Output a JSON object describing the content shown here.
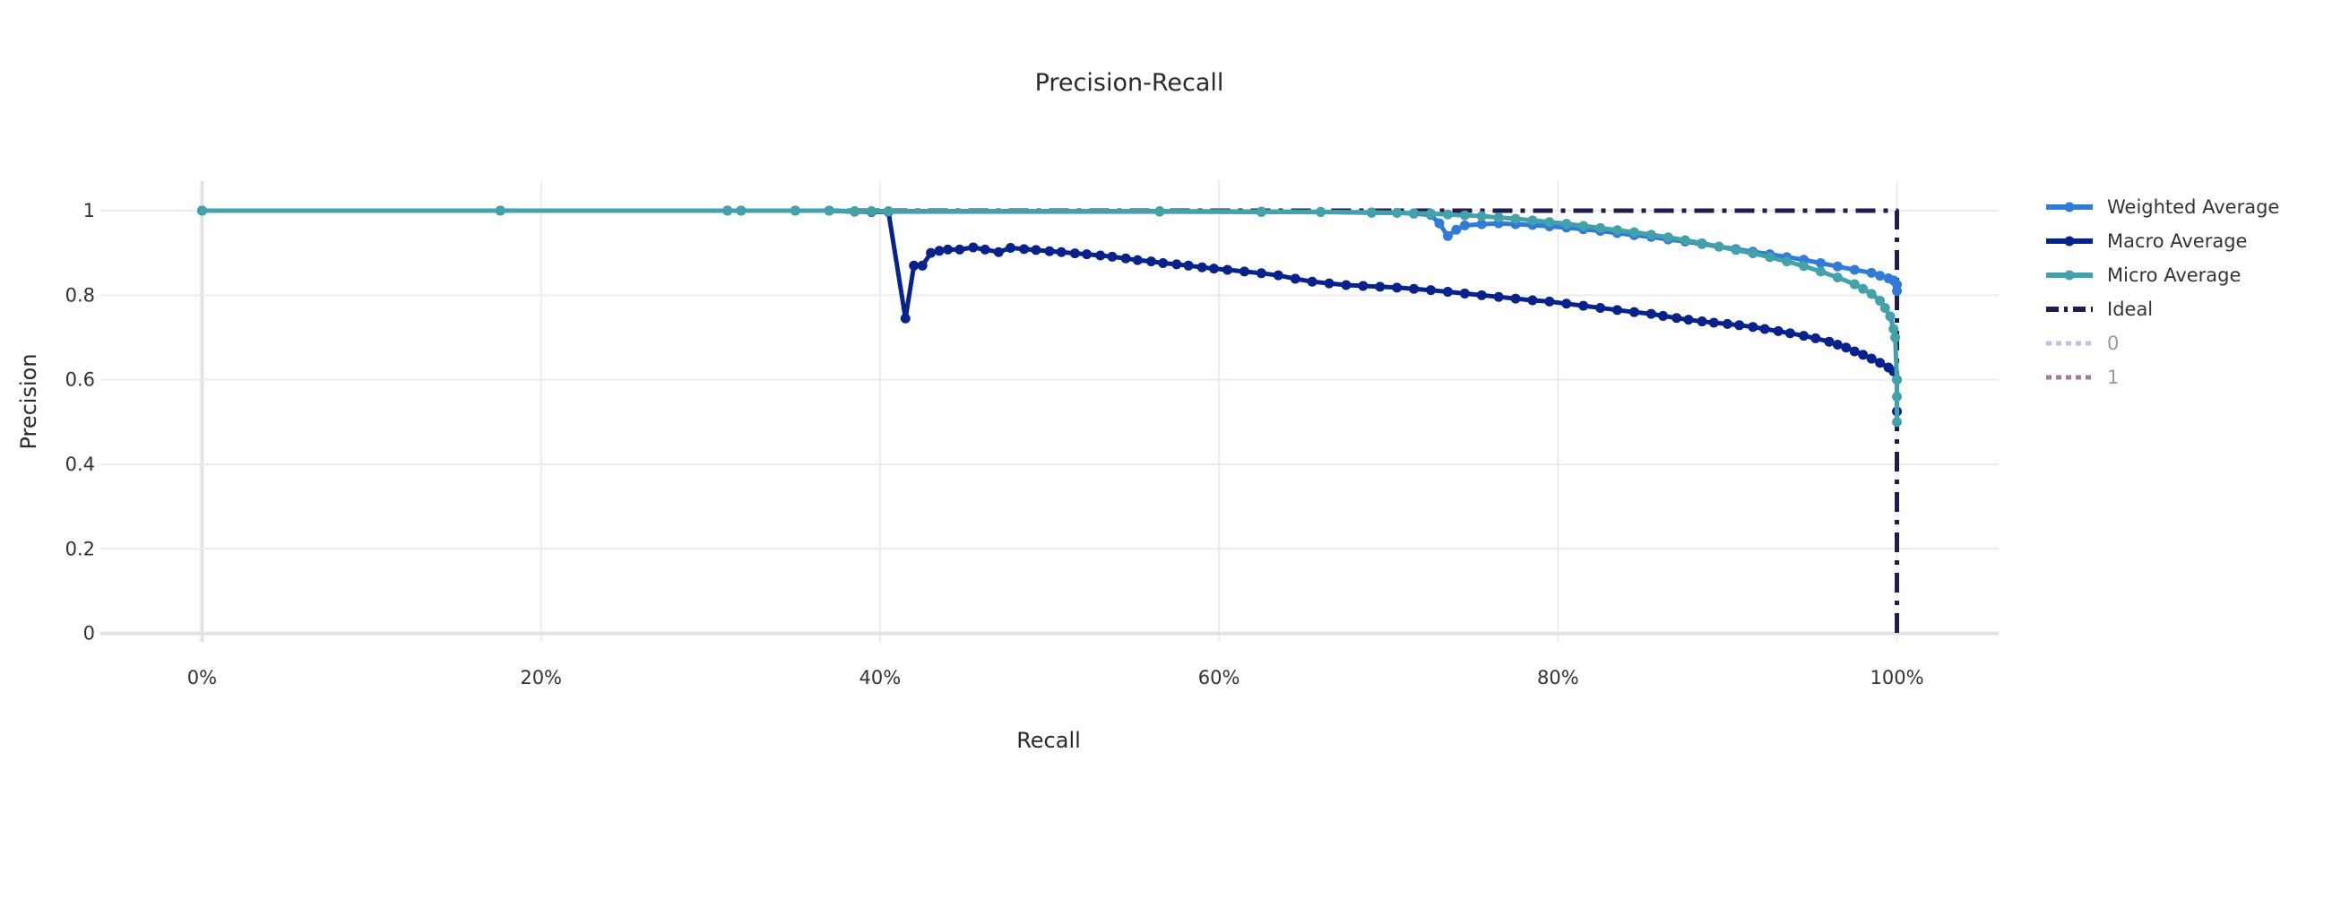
{
  "chart_data": {
    "type": "line",
    "title": "Precision-Recall",
    "xlabel": "Recall",
    "ylabel": "Precision",
    "xlim": [
      -0.06,
      1.06
    ],
    "ylim": [
      -0.02,
      1.07
    ],
    "x_ticks": [
      0,
      0.2,
      0.4,
      0.6,
      0.8,
      1.0
    ],
    "x_tick_labels": [
      "0%",
      "20%",
      "40%",
      "60%",
      "80%",
      "100%"
    ],
    "y_ticks": [
      0,
      0.2,
      0.4,
      0.6,
      0.8,
      1
    ],
    "y_tick_labels": [
      "0",
      "0.2",
      "0.4",
      "0.6",
      "0.8",
      "1"
    ],
    "grid": true,
    "legend_position": "right",
    "series": [
      {
        "name": "Weighted Average",
        "color": "#2f7bd6",
        "style": "lines+markers",
        "x": [
          0,
          0.176,
          0.31,
          0.318,
          0.35,
          0.37,
          0.385,
          0.395,
          0.405,
          0.565,
          0.625,
          0.66,
          0.69,
          0.705,
          0.715,
          0.725,
          0.73,
          0.735,
          0.74,
          0.745,
          0.755,
          0.765,
          0.775,
          0.785,
          0.795,
          0.805,
          0.815,
          0.825,
          0.835,
          0.845,
          0.855,
          0.865,
          0.875,
          0.885,
          0.895,
          0.905,
          0.915,
          0.925,
          0.935,
          0.945,
          0.955,
          0.965,
          0.975,
          0.985,
          0.99,
          0.995,
          0.998,
          1.0,
          1.0
        ],
        "y": [
          1,
          1,
          1,
          1,
          1,
          1,
          0.998,
          0.998,
          0.998,
          0.998,
          0.997,
          0.997,
          0.995,
          0.995,
          0.993,
          0.99,
          0.97,
          0.94,
          0.955,
          0.965,
          0.968,
          0.97,
          0.968,
          0.966,
          0.963,
          0.96,
          0.956,
          0.952,
          0.947,
          0.942,
          0.938,
          0.932,
          0.927,
          0.921,
          0.915,
          0.909,
          0.903,
          0.897,
          0.89,
          0.884,
          0.876,
          0.868,
          0.86,
          0.853,
          0.846,
          0.84,
          0.835,
          0.825,
          0.81
        ]
      },
      {
        "name": "Macro Average",
        "color": "#08228c",
        "style": "lines+markers",
        "x": [
          0,
          0.176,
          0.31,
          0.318,
          0.35,
          0.37,
          0.385,
          0.395,
          0.405,
          0.415,
          0.42,
          0.425,
          0.43,
          0.435,
          0.44,
          0.447,
          0.455,
          0.462,
          0.47,
          0.477,
          0.485,
          0.492,
          0.5,
          0.507,
          0.515,
          0.522,
          0.53,
          0.537,
          0.545,
          0.552,
          0.56,
          0.567,
          0.575,
          0.582,
          0.59,
          0.597,
          0.605,
          0.615,
          0.625,
          0.635,
          0.645,
          0.655,
          0.665,
          0.675,
          0.685,
          0.695,
          0.705,
          0.715,
          0.725,
          0.735,
          0.745,
          0.755,
          0.765,
          0.775,
          0.785,
          0.795,
          0.805,
          0.815,
          0.825,
          0.835,
          0.845,
          0.855,
          0.862,
          0.87,
          0.877,
          0.885,
          0.892,
          0.9,
          0.907,
          0.915,
          0.922,
          0.93,
          0.937,
          0.945,
          0.952,
          0.96,
          0.965,
          0.97,
          0.975,
          0.98,
          0.985,
          0.99,
          0.995,
          0.998,
          1.0,
          1.0
        ],
        "y": [
          1,
          1,
          1,
          1,
          1,
          1,
          0.998,
          0.997,
          0.997,
          0.745,
          0.87,
          0.87,
          0.9,
          0.905,
          0.908,
          0.908,
          0.913,
          0.908,
          0.902,
          0.912,
          0.909,
          0.907,
          0.904,
          0.902,
          0.899,
          0.897,
          0.894,
          0.891,
          0.887,
          0.883,
          0.88,
          0.876,
          0.873,
          0.87,
          0.866,
          0.863,
          0.86,
          0.856,
          0.852,
          0.847,
          0.839,
          0.832,
          0.828,
          0.824,
          0.822,
          0.82,
          0.818,
          0.815,
          0.812,
          0.808,
          0.804,
          0.8,
          0.796,
          0.792,
          0.788,
          0.785,
          0.78,
          0.775,
          0.77,
          0.765,
          0.76,
          0.756,
          0.751,
          0.746,
          0.742,
          0.738,
          0.735,
          0.732,
          0.729,
          0.725,
          0.72,
          0.715,
          0.71,
          0.704,
          0.698,
          0.69,
          0.683,
          0.676,
          0.667,
          0.659,
          0.65,
          0.64,
          0.629,
          0.62,
          0.6,
          0.525
        ]
      },
      {
        "name": "Micro Average",
        "color": "#43a2a9",
        "style": "lines+markers",
        "x": [
          0,
          0.176,
          0.31,
          0.318,
          0.35,
          0.37,
          0.385,
          0.395,
          0.405,
          0.565,
          0.625,
          0.66,
          0.69,
          0.705,
          0.715,
          0.725,
          0.735,
          0.745,
          0.755,
          0.765,
          0.775,
          0.785,
          0.795,
          0.805,
          0.815,
          0.825,
          0.835,
          0.845,
          0.855,
          0.865,
          0.875,
          0.885,
          0.895,
          0.905,
          0.915,
          0.925,
          0.935,
          0.945,
          0.955,
          0.965,
          0.975,
          0.98,
          0.985,
          0.99,
          0.993,
          0.996,
          0.998,
          0.999,
          1.0,
          1.0,
          1.0
        ],
        "y": [
          1,
          1,
          1,
          1,
          1,
          1,
          0.999,
          0.999,
          0.999,
          0.999,
          0.998,
          0.997,
          0.996,
          0.995,
          0.994,
          0.993,
          0.991,
          0.989,
          0.987,
          0.984,
          0.981,
          0.977,
          0.973,
          0.969,
          0.964,
          0.959,
          0.954,
          0.949,
          0.943,
          0.937,
          0.93,
          0.923,
          0.915,
          0.907,
          0.899,
          0.89,
          0.88,
          0.869,
          0.856,
          0.842,
          0.826,
          0.815,
          0.803,
          0.787,
          0.77,
          0.75,
          0.72,
          0.7,
          0.6,
          0.56,
          0.5
        ]
      },
      {
        "name": "Ideal",
        "color": "#221c4d",
        "style": "dashdot",
        "x": [
          0,
          1,
          1
        ],
        "y": [
          1,
          1,
          0
        ]
      },
      {
        "name": "0",
        "color": "#c3bde8",
        "style": "dot",
        "legend_only": true,
        "x": [],
        "y": []
      },
      {
        "name": "1",
        "color": "#a57a9c",
        "style": "dot",
        "legend_only": true,
        "x": [],
        "y": []
      }
    ]
  }
}
